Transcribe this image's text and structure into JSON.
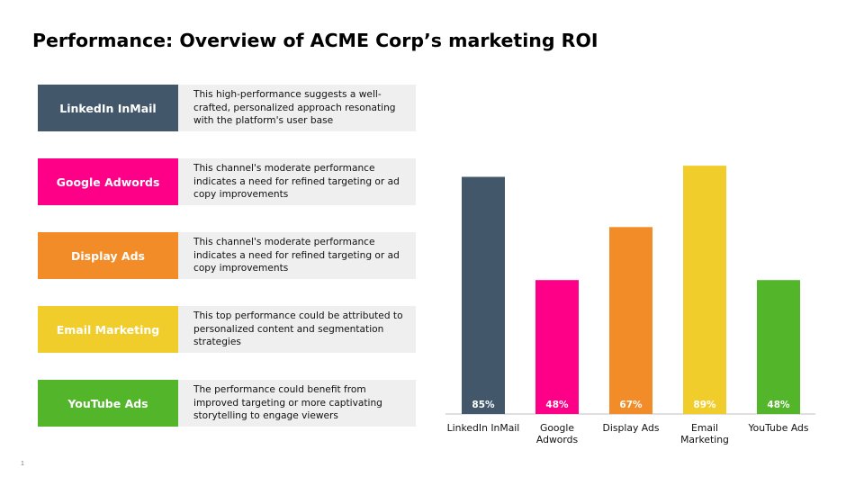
{
  "title": "Performance: Overview of ACME Corp’s marketing ROI",
  "channels": [
    {
      "label": "LinkedIn InMail",
      "color": "#43576a",
      "description": "This high-performance suggests a well-crafted, personalized approach resonating with the platform's user base"
    },
    {
      "label": "Google Adwords",
      "color": "#fd0087",
      "description": "This channel's moderate performance indicates a need for refined targeting or ad copy improvements"
    },
    {
      "label": "Display Ads",
      "color": "#f28c28",
      "description": "This channel's moderate performance indicates a need for refined targeting or ad copy improvements"
    },
    {
      "label": "Email Marketing",
      "color": "#f1cd2c",
      "description": "This top performance could be attributed to personalized content and segmentation strategies"
    },
    {
      "label": "YouTube Ads",
      "color": "#52b52a",
      "description": "The performance could benefit from improved targeting or more captivating storytelling to engage viewers"
    }
  ],
  "chart_data": {
    "type": "bar",
    "categories": [
      "LinkedIn InMail",
      "Google Adwords",
      "Display Ads",
      "Email Marketing",
      "YouTube Ads"
    ],
    "category_lines": [
      [
        "LinkedIn InMail"
      ],
      [
        "Google",
        "Adwords"
      ],
      [
        "Display Ads"
      ],
      [
        "Email",
        "Marketing"
      ],
      [
        "YouTube Ads"
      ]
    ],
    "values": [
      85,
      48,
      67,
      89,
      48
    ],
    "data_labels": [
      "85%",
      "48%",
      "67%",
      "89%",
      "48%"
    ],
    "colors": [
      "#43576a",
      "#fd0087",
      "#f28c28",
      "#f1cd2c",
      "#52b52a"
    ],
    "ylim": [
      0,
      100
    ],
    "grid": false,
    "legend": "none"
  },
  "page_number": "1"
}
